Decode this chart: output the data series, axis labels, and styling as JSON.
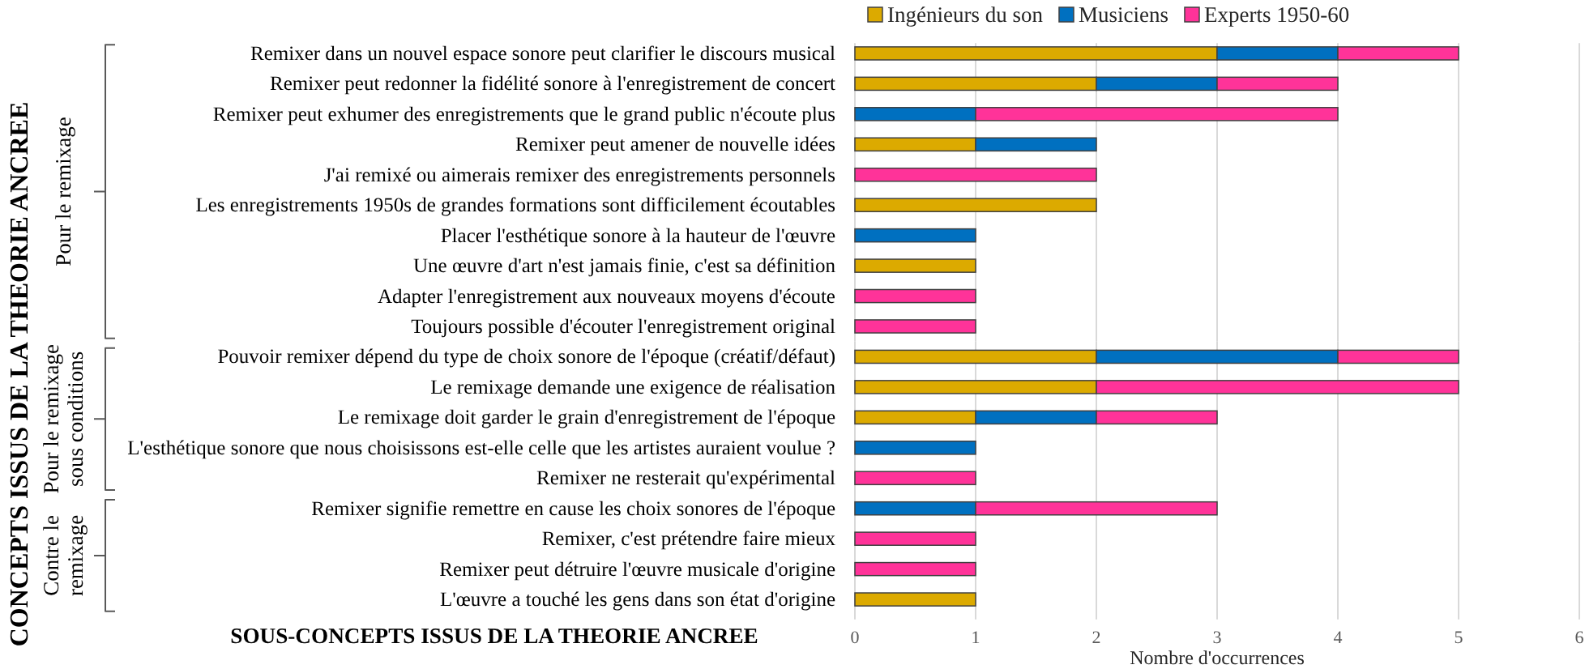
{
  "chart_data": [
    {
      "type": "bar",
      "orientation": "horizontal",
      "stacked": true,
      "categories": [
        "Remixer dans un nouvel espace sonore peut clarifier le discours musical",
        "Remixer peut redonner la fidélité sonore à l'enregistrement de concert",
        "Remixer peut exhumer des enregistrements que le grand public n'écoute plus",
        "Remixer peut amener de nouvelle idées",
        "J'ai remixé ou aimerais remixer des enregistrements personnels",
        "Les enregistrements 1950s de grandes formations sont difficilement écoutables",
        "Placer l'esthétique sonore à la hauteur de l'œuvre",
        "Une œuvre d'art n'est jamais finie, c'est sa définition",
        "Adapter l'enregistrement aux nouveaux moyens d'écoute",
        "Toujours possible d'écouter l'enregistrement original"
      ],
      "series": [
        {
          "name": "Ingénieurs du son",
          "color": "#dcaa00",
          "values": [
            3,
            2,
            null,
            1,
            null,
            2,
            null,
            1,
            null,
            null
          ]
        },
        {
          "name": "Musiciens",
          "color": "#0070c0",
          "values": [
            1,
            1,
            1,
            1,
            null,
            null,
            1,
            null,
            null,
            null
          ]
        },
        {
          "name": "Experts 1950-60",
          "color": "#ff3399",
          "values": [
            1,
            1,
            3,
            null,
            2,
            null,
            null,
            null,
            1,
            1
          ]
        }
      ],
      "xlim": [
        0,
        6
      ],
      "xticks": [
        0,
        1,
        2,
        3,
        4,
        5,
        6
      ],
      "tick_labels": "y",
      "grid": "x",
      "legend": "top",
      "annotations": [
        "Pour le remixage",
        "CONCEPTS ISSUS DE LA THEORIE ANCREE"
      ]
    },
    {
      "type": "bar",
      "orientation": "horizontal",
      "stacked": true,
      "categories": [
        "Pouvoir remixer dépend du type de choix sonore de l'époque (créatif/défaut)",
        "Le remixage demande une exigence de réalisation",
        "Le remixage doit garder le grain d'enregistrement de l'époque",
        "L'esthétique sonore que nous choisissons est-elle celle que les artistes auraient voulue ?",
        "Remixer ne resterait qu'expérimental"
      ],
      "series": [
        {
          "color": "#dcaa00",
          "values": [
            2,
            2,
            1,
            null,
            null
          ]
        },
        {
          "color": "#0070c0",
          "values": [
            2,
            null,
            1,
            1,
            null
          ]
        },
        {
          "color": "#ff3399",
          "values": [
            1,
            3,
            1,
            null,
            1
          ]
        }
      ],
      "xlim": [
        0,
        6
      ],
      "xticks": [
        0,
        1,
        2,
        3,
        4,
        5,
        6
      ],
      "tick_labels": "y",
      "grid": "x",
      "annotations": [
        "Pour le remixage sous conditions"
      ]
    },
    {
      "type": "bar",
      "orientation": "horizontal",
      "stacked": true,
      "categories": [
        "Remixer signifie remettre en cause les choix sonores de l'époque",
        "Remixer, c'est prétendre faire mieux",
        "Remixer peut détruire l'œuvre musicale d'origine",
        "L'œuvre a touché les gens dans son état d'origine"
      ],
      "series": [
        {
          "color": "#dcaa00",
          "values": [
            null,
            null,
            null,
            1
          ]
        },
        {
          "color": "#0070c0",
          "values": [
            1,
            null,
            null,
            null
          ]
        },
        {
          "color": "#ff3399",
          "values": [
            2,
            1,
            1,
            null
          ]
        }
      ],
      "xlim": [
        0,
        6
      ],
      "xticks": [
        0,
        1,
        2,
        3,
        4,
        5,
        6
      ],
      "xlabel": "Nombre d'occurrences",
      "grid": "x",
      "annotations": [
        "Contre le remixage",
        "SOUS-CONCEPTS ISSUS DE LA THEORIE ANCREE"
      ]
    }
  ]
}
